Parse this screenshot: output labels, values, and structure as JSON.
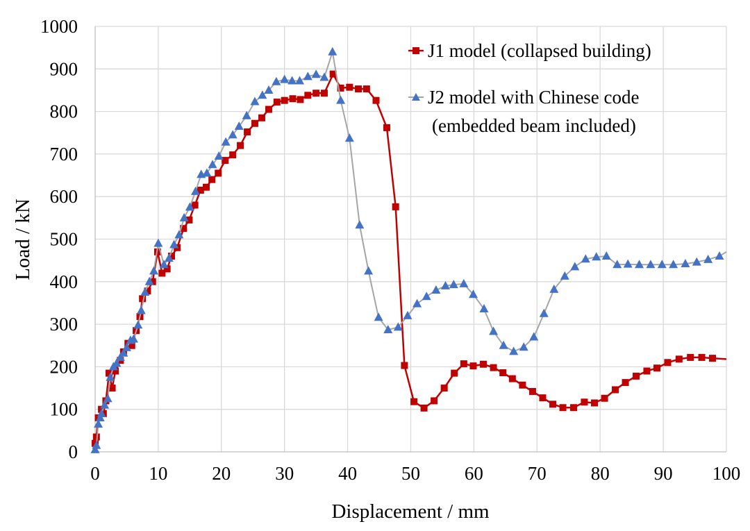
{
  "chart_data": {
    "type": "line",
    "title": "",
    "xlabel": "Displacement / mm",
    "ylabel": "Load / kN",
    "xlim": [
      0,
      100
    ],
    "ylim": [
      0,
      1000
    ],
    "xticks": [
      0,
      10,
      20,
      30,
      40,
      50,
      60,
      70,
      80,
      90,
      100
    ],
    "yticks": [
      0,
      100,
      200,
      300,
      400,
      500,
      600,
      700,
      800,
      900,
      1000
    ],
    "grid": true,
    "legend_position": "top-right",
    "series": [
      {
        "name": "J1 model (collapsed building)",
        "color": "#C00000",
        "marker": "square",
        "x": [
          0,
          0.2,
          0.5,
          1,
          1.3,
          1.7,
          2.2,
          2.7,
          3.2,
          4,
          4.5,
          5.2,
          5.8,
          6.5,
          7.1,
          7.5,
          8.3,
          9.1,
          9.9,
          10.6,
          11.4,
          12.1,
          13,
          14,
          14.9,
          15.8,
          16.7,
          17.6,
          18.5,
          19.5,
          20.6,
          21.8,
          23,
          24.1,
          25.3,
          26.4,
          27.5,
          28.8,
          30,
          31.3,
          32.5,
          33.7,
          35,
          36.3,
          37.7,
          38.9,
          40.3,
          41.7,
          43,
          44.5,
          46.2,
          47.6,
          49,
          50.5,
          52.1,
          53.7,
          55.3,
          56.9,
          58.4,
          59.9,
          61.5,
          63.1,
          64.6,
          66.1,
          67.7,
          69.3,
          70.9,
          72.5,
          74.1,
          75.8,
          77.5,
          79.1,
          80.7,
          82.4,
          84,
          85.7,
          87.4,
          89,
          90.7,
          92.5,
          94.3,
          96.1,
          97.8,
          100
        ],
        "y": [
          20,
          35,
          80,
          100,
          90,
          120,
          185,
          150,
          190,
          215,
          235,
          255,
          250,
          285,
          318,
          360,
          378,
          400,
          470,
          420,
          430,
          460,
          480,
          525,
          545,
          580,
          615,
          622,
          640,
          655,
          685,
          698,
          720,
          752,
          772,
          785,
          805,
          822,
          826,
          830,
          828,
          838,
          843,
          843,
          888,
          855,
          857,
          853,
          853,
          826,
          762,
          576,
          203,
          118,
          103,
          120,
          150,
          185,
          207,
          202,
          206,
          198,
          186,
          172,
          157,
          142,
          127,
          112,
          104,
          104,
          117,
          115,
          126,
          146,
          163,
          178,
          190,
          197,
          210,
          218,
          222,
          222,
          220,
          218
        ]
      },
      {
        "name": "J2 model with Chinese code (embedded beam included)",
        "legend_lines": [
          "J2 model with Chinese code",
          "(embedded beam included)"
        ],
        "color": "#4472C4",
        "line_color": "#A5A5A5",
        "marker": "triangle",
        "x": [
          0,
          0.2,
          0.5,
          0.8,
          1,
          1.5,
          2,
          2.4,
          2.9,
          3.4,
          4,
          4.5,
          5,
          5.6,
          6.1,
          6.8,
          7.3,
          7.9,
          8.6,
          9.3,
          10,
          10.9,
          11.7,
          12.5,
          13.3,
          14.1,
          15,
          15.9,
          16.8,
          17.7,
          18.6,
          19.6,
          20.7,
          21.8,
          22.8,
          24,
          25.3,
          26.5,
          27.5,
          28.7,
          30,
          31.2,
          32.4,
          33.7,
          35,
          36.3,
          37.6,
          38.9,
          40.3,
          41.9,
          43.3,
          44.9,
          46.4,
          48,
          49.5,
          51,
          52.5,
          54,
          55.5,
          56.8,
          58.4,
          59.9,
          61.6,
          63.1,
          64.7,
          66.3,
          67.9,
          69.5,
          71.1,
          72.7,
          74.4,
          76,
          77.7,
          79.4,
          81,
          82.7,
          84.4,
          86.2,
          88,
          89.8,
          91.6,
          93.5,
          95.3,
          97.1,
          98.9,
          100
        ],
        "y": [
          5,
          15,
          65,
          80,
          90,
          110,
          125,
          175,
          200,
          208,
          222,
          232,
          245,
          262,
          265,
          298,
          332,
          375,
          400,
          425,
          490,
          440,
          455,
          487,
          510,
          550,
          575,
          612,
          652,
          655,
          675,
          695,
          728,
          745,
          765,
          790,
          823,
          838,
          850,
          870,
          875,
          872,
          872,
          882,
          887,
          880,
          940,
          826,
          737,
          533,
          425,
          316,
          287,
          293,
          320,
          348,
          365,
          380,
          390,
          393,
          395,
          370,
          336,
          283,
          250,
          236,
          246,
          270,
          325,
          382,
          413,
          435,
          453,
          458,
          460,
          440,
          441,
          440,
          440,
          440,
          440,
          442,
          446,
          452,
          460,
          470
        ]
      }
    ]
  }
}
